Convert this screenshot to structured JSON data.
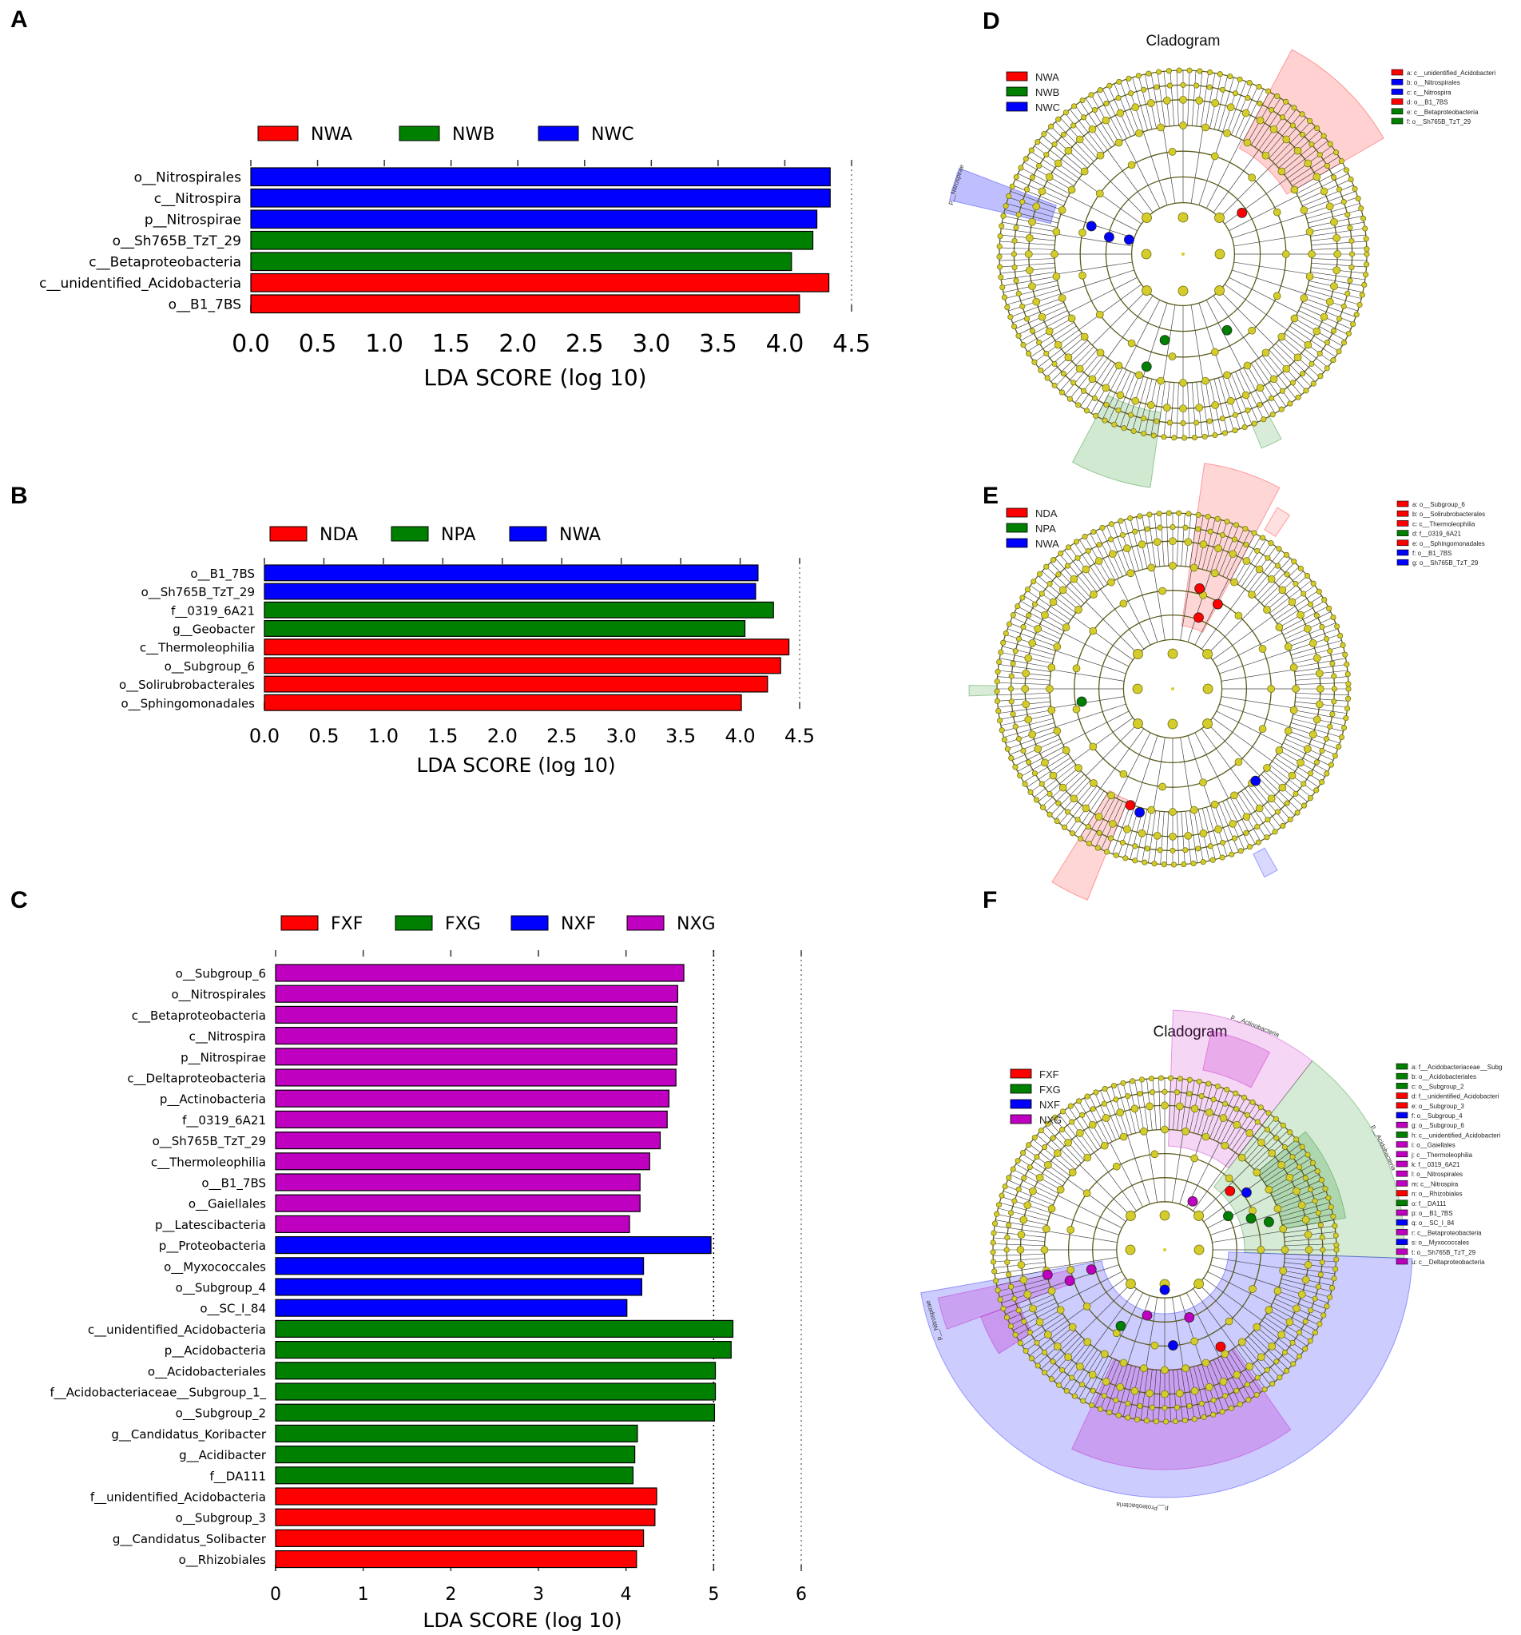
{
  "panels": {
    "a": "A",
    "b": "B",
    "c": "C",
    "d": "D",
    "e": "E",
    "f": "F"
  },
  "chart_data": [
    {
      "id": "A",
      "type": "bar",
      "orientation": "horizontal",
      "xlabel": "LDA SCORE (log 10)",
      "xlim": [
        0,
        4.5
      ],
      "xticks": [
        0.0,
        0.5,
        1.0,
        1.5,
        2.0,
        2.5,
        3.0,
        3.5,
        4.0,
        4.5
      ],
      "tick_decimals": 1,
      "groups": [
        {
          "name": "NWA",
          "color": "#ff0000"
        },
        {
          "name": "NWB",
          "color": "#008000"
        },
        {
          "name": "NWC",
          "color": "#0000ff"
        }
      ],
      "bars": [
        {
          "label": "o__Nitrospirales",
          "value": 4.34,
          "group": "NWC"
        },
        {
          "label": "c__Nitrospira",
          "value": 4.34,
          "group": "NWC"
        },
        {
          "label": "p__Nitrospirae",
          "value": 4.24,
          "group": "NWC"
        },
        {
          "label": "o__Sh765B_TzT_29",
          "value": 4.21,
          "group": "NWB"
        },
        {
          "label": "c__Betaproteobacteria",
          "value": 4.05,
          "group": "NWB"
        },
        {
          "label": "c__unidentified_Acidobacteria",
          "value": 4.33,
          "group": "NWA"
        },
        {
          "label": "o__B1_7BS",
          "value": 4.11,
          "group": "NWA"
        }
      ]
    },
    {
      "id": "B",
      "type": "bar",
      "orientation": "horizontal",
      "xlabel": "LDA SCORE (log 10)",
      "xlim": [
        0,
        4.5
      ],
      "xticks": [
        0.0,
        0.5,
        1.0,
        1.5,
        2.0,
        2.5,
        3.0,
        3.5,
        4.0,
        4.5
      ],
      "tick_decimals": 1,
      "groups": [
        {
          "name": "NDA",
          "color": "#ff0000"
        },
        {
          "name": "NPA",
          "color": "#008000"
        },
        {
          "name": "NWA",
          "color": "#0000ff"
        }
      ],
      "bars": [
        {
          "label": "o__B1_7BS",
          "value": 4.15,
          "group": "NWA"
        },
        {
          "label": "o__Sh765B_TzT_29",
          "value": 4.13,
          "group": "NWA"
        },
        {
          "label": "f__0319_6A21",
          "value": 4.28,
          "group": "NPA"
        },
        {
          "label": "g__Geobacter",
          "value": 4.04,
          "group": "NPA"
        },
        {
          "label": "c__Thermoleophilia",
          "value": 4.41,
          "group": "NDA"
        },
        {
          "label": "o__Subgroup_6",
          "value": 4.34,
          "group": "NDA"
        },
        {
          "label": "o__Solirubrobacterales",
          "value": 4.23,
          "group": "NDA"
        },
        {
          "label": "o__Sphingomonadales",
          "value": 4.01,
          "group": "NDA"
        }
      ]
    },
    {
      "id": "C",
      "type": "bar",
      "orientation": "horizontal",
      "xlabel": "LDA SCORE (log 10)",
      "xlim": [
        0,
        6
      ],
      "xticks": [
        0,
        1,
        2,
        3,
        4,
        5,
        6
      ],
      "tick_decimals": 0,
      "groups": [
        {
          "name": "FXF",
          "color": "#ff0000"
        },
        {
          "name": "FXG",
          "color": "#008000"
        },
        {
          "name": "NXF",
          "color": "#0000ff"
        },
        {
          "name": "NXG",
          "color": "#c000c0"
        }
      ],
      "bars": [
        {
          "label": "o__Subgroup_6",
          "value": 4.66,
          "group": "NXG"
        },
        {
          "label": "o__Nitrospirales",
          "value": 4.59,
          "group": "NXG"
        },
        {
          "label": "c__Betaproteobacteria",
          "value": 4.58,
          "group": "NXG"
        },
        {
          "label": "c__Nitrospira",
          "value": 4.58,
          "group": "NXG"
        },
        {
          "label": "p__Nitrospirae",
          "value": 4.58,
          "group": "NXG"
        },
        {
          "label": "c__Deltaproteobacteria",
          "value": 4.57,
          "group": "NXG"
        },
        {
          "label": "p__Actinobacteria",
          "value": 4.49,
          "group": "NXG"
        },
        {
          "label": "f__0319_6A21",
          "value": 4.47,
          "group": "NXG"
        },
        {
          "label": "o__Sh765B_TzT_29",
          "value": 4.39,
          "group": "NXG"
        },
        {
          "label": "c__Thermoleophilia",
          "value": 4.27,
          "group": "NXG"
        },
        {
          "label": "o__B1_7BS",
          "value": 4.16,
          "group": "NXG"
        },
        {
          "label": "o__Gaiellales",
          "value": 4.16,
          "group": "NXG"
        },
        {
          "label": "p__Latescibacteria",
          "value": 4.04,
          "group": "NXG"
        },
        {
          "label": "p__Proteobacteria",
          "value": 4.97,
          "group": "NXF"
        },
        {
          "label": "o__Myxococcales",
          "value": 4.2,
          "group": "NXF"
        },
        {
          "label": "o__Subgroup_4",
          "value": 4.18,
          "group": "NXF"
        },
        {
          "label": "o__SC_I_84",
          "value": 4.01,
          "group": "NXF"
        },
        {
          "label": "c__unidentified_Acidobacteria",
          "value": 5.22,
          "group": "FXG"
        },
        {
          "label": "p__Acidobacteria",
          "value": 5.2,
          "group": "FXG"
        },
        {
          "label": "o__Acidobacteriales",
          "value": 5.02,
          "group": "FXG"
        },
        {
          "label": "f__Acidobacteriaceae__Subgroup_1_",
          "value": 5.02,
          "group": "FXG"
        },
        {
          "label": "o__Subgroup_2",
          "value": 5.01,
          "group": "FXG"
        },
        {
          "label": "g__Candidatus_Koribacter",
          "value": 4.13,
          "group": "FXG"
        },
        {
          "label": "g__Acidibacter",
          "value": 4.1,
          "group": "FXG"
        },
        {
          "label": "f__DA111",
          "value": 4.08,
          "group": "FXG"
        },
        {
          "label": "f__unidentified_Acidobacteria",
          "value": 4.35,
          "group": "FXF"
        },
        {
          "label": "o__Subgroup_3",
          "value": 4.33,
          "group": "FXF"
        },
        {
          "label": "g__Candidatus_Solibacter",
          "value": 4.2,
          "group": "FXF"
        },
        {
          "label": "o__Rhizobiales",
          "value": 4.12,
          "group": "FXF"
        }
      ]
    }
  ],
  "cladograms": [
    {
      "id": "D",
      "title": "Cladogram",
      "legend": [
        {
          "name": "NWA",
          "color": "#ff0000"
        },
        {
          "name": "NWB",
          "color": "#008000"
        },
        {
          "name": "NWC",
          "color": "#0000ff"
        }
      ],
      "key": [
        {
          "text": "a: c__unidentified_Acidobacteri",
          "color": "#ff0000"
        },
        {
          "text": "b: o__Nitrospirales",
          "color": "#0000ff"
        },
        {
          "text": "c: c__Nitrospira",
          "color": "#0000ff"
        },
        {
          "text": "d: o__B1_7BS",
          "color": "#ff0000"
        },
        {
          "text": "e: c__Betaproteobacteria",
          "color": "#008000"
        },
        {
          "text": "f: o__Sh765B_TzT_29",
          "color": "#008000"
        }
      ],
      "phylum_labels": [
        "p__Nitrospirae"
      ]
    },
    {
      "id": "E",
      "title": "",
      "legend": [
        {
          "name": "NDA",
          "color": "#ff0000"
        },
        {
          "name": "NPA",
          "color": "#008000"
        },
        {
          "name": "NWA",
          "color": "#0000ff"
        }
      ],
      "key": [
        {
          "text": "a: o__Subgroup_6",
          "color": "#ff0000"
        },
        {
          "text": "b: o__Solirubrobacterales",
          "color": "#ff0000"
        },
        {
          "text": "c: c__Thermoleophilia",
          "color": "#ff0000"
        },
        {
          "text": "d: f__0319_6A21",
          "color": "#008000"
        },
        {
          "text": "e: o__Sphingomonadales",
          "color": "#ff0000"
        },
        {
          "text": "f: o__B1_7BS",
          "color": "#0000ff"
        },
        {
          "text": "g: o__Sh765B_TzT_29",
          "color": "#0000ff"
        }
      ],
      "phylum_labels": []
    },
    {
      "id": "F",
      "title": "Cladogram",
      "legend": [
        {
          "name": "FXF",
          "color": "#ff0000"
        },
        {
          "name": "FXG",
          "color": "#008000"
        },
        {
          "name": "NXF",
          "color": "#0000ff"
        },
        {
          "name": "NXG",
          "color": "#c000c0"
        }
      ],
      "key": [
        {
          "text": "a: f__Acidobacteriaceae__Subg",
          "color": "#008000"
        },
        {
          "text": "b: o__Acidobacteriales",
          "color": "#008000"
        },
        {
          "text": "c: o__Subgroup_2",
          "color": "#008000"
        },
        {
          "text": "d: f__unidentified_Acidobacteri",
          "color": "#ff0000"
        },
        {
          "text": "e: o__Subgroup_3",
          "color": "#ff0000"
        },
        {
          "text": "f: o__Subgroup_4",
          "color": "#0000ff"
        },
        {
          "text": "g: o__Subgroup_6",
          "color": "#c000c0"
        },
        {
          "text": "h: c__unidentified_Acidobacteri",
          "color": "#008000"
        },
        {
          "text": "i: o__Gaiellales",
          "color": "#c000c0"
        },
        {
          "text": "j: c__Thermoleophilia",
          "color": "#c000c0"
        },
        {
          "text": "k: f__0319_6A21",
          "color": "#c000c0"
        },
        {
          "text": "l: o__Nitrospirales",
          "color": "#c000c0"
        },
        {
          "text": "m: c__Nitrospira",
          "color": "#c000c0"
        },
        {
          "text": "n: o__Rhizobiales",
          "color": "#ff0000"
        },
        {
          "text": "o: f__DA111",
          "color": "#008000"
        },
        {
          "text": "p: o__B1_7BS",
          "color": "#c000c0"
        },
        {
          "text": "q: o__SC_I_84",
          "color": "#0000ff"
        },
        {
          "text": "r: c__Betaproteobacteria",
          "color": "#c000c0"
        },
        {
          "text": "s: o__Myxococcales",
          "color": "#0000ff"
        },
        {
          "text": "t: o__Sh765B_TzT_29",
          "color": "#c000c0"
        },
        {
          "text": "u: c__Deltaproteobacteria",
          "color": "#c000c0"
        }
      ],
      "phylum_labels": [
        "p__Actinobacteria",
        "p__Acidobacteria",
        "p__Proteobacteria",
        "p__Nitrospirae"
      ]
    }
  ]
}
